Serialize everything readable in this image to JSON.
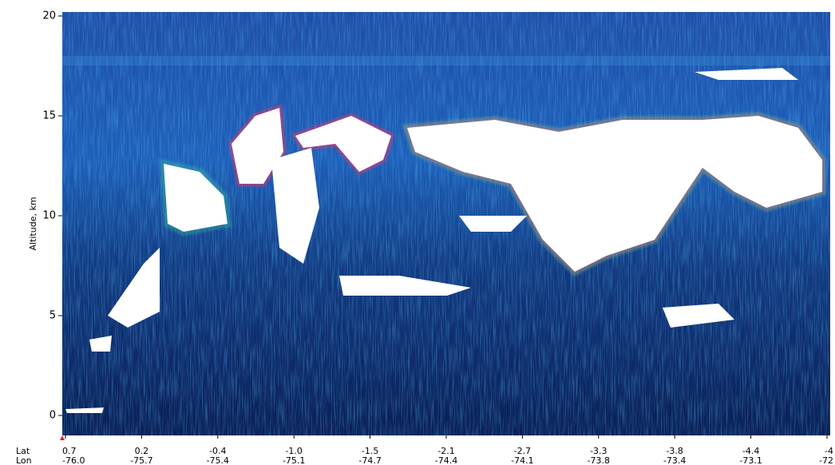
{
  "chart_data": {
    "type": "heatmap",
    "y_label": "Altitude, km",
    "ylim": [
      -1,
      20
    ],
    "yticks": [
      0,
      5,
      10,
      15,
      20
    ],
    "x_row_labels": [
      "Lat",
      "Lon"
    ],
    "x_ticks": [
      {
        "lat": "0.7",
        "lon": "-76.0"
      },
      {
        "lat": "0.2",
        "lon": "-75.7"
      },
      {
        "lat": "-0.4",
        "lon": "-75.4"
      },
      {
        "lat": "-1.0",
        "lon": "-75.1"
      },
      {
        "lat": "-1.5",
        "lon": "-74.7"
      },
      {
        "lat": "-2.1",
        "lon": "-74.4"
      },
      {
        "lat": "-2.7",
        "lon": "-74.1"
      },
      {
        "lat": "-3.3",
        "lon": "-73.8"
      },
      {
        "lat": "-3.8",
        "lon": "-73.4"
      },
      {
        "lat": "-4.4",
        "lon": "-73.1"
      },
      {
        "lat": "-4",
        "lon": "-72"
      }
    ]
  }
}
